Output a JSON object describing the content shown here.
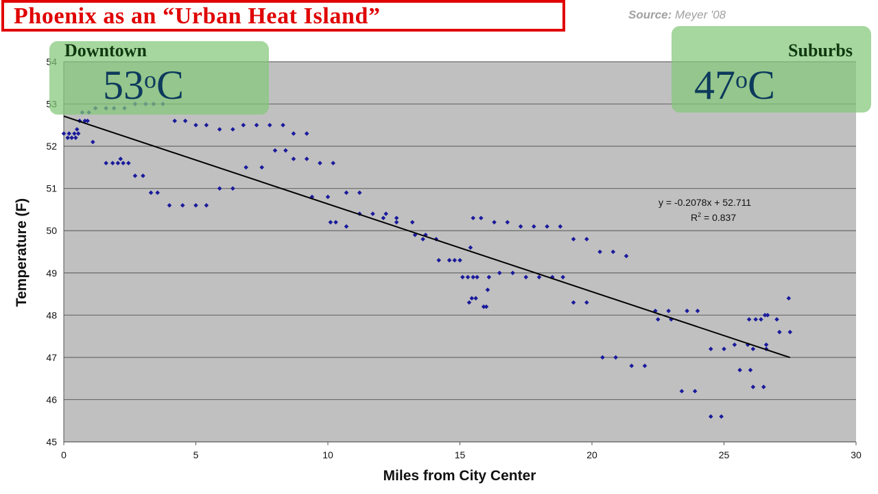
{
  "header": {
    "title": "Phoenix as an “Urban Heat Island”",
    "source_label": "Source:",
    "source_value": "Meyer '08"
  },
  "badges": {
    "downtown": {
      "label": "Downtown",
      "value": "53",
      "degree": "o",
      "unit": "C"
    },
    "suburbs": {
      "label": "Suburbs",
      "value": "47",
      "degree": "o",
      "unit": "C"
    }
  },
  "colors": {
    "title_red": "#e00000",
    "plot_bg": "#c0c0c0",
    "point_color": "#1a1a9c",
    "trend_color": "#000000",
    "badge_green": "#82c878"
  },
  "chart_data": {
    "type": "scatter",
    "title": "",
    "xlabel": "Miles from City Center",
    "ylabel": "Temperature (F)",
    "xlim": [
      0,
      30
    ],
    "ylim": [
      45,
      54
    ],
    "xticks": [
      0,
      5,
      10,
      15,
      20,
      25,
      30
    ],
    "yticks": [
      45,
      46,
      47,
      48,
      49,
      50,
      51,
      52,
      53,
      54
    ],
    "grid": "horizontal",
    "trendline": {
      "slope": -0.2078,
      "intercept": 52.711,
      "x_range": [
        0,
        27.5
      ],
      "equation": "y = -0.2078x + 52.711",
      "r2_prefix": "R",
      "r2_sup": "2",
      "r2_value": " = 0.837"
    },
    "points": [
      [
        0.0,
        52.3
      ],
      [
        0.2,
        52.3
      ],
      [
        0.15,
        52.2
      ],
      [
        0.3,
        52.2
      ],
      [
        0.4,
        52.3
      ],
      [
        0.5,
        52.4
      ],
      [
        0.45,
        52.2
      ],
      [
        0.55,
        52.3
      ],
      [
        0.6,
        52.6
      ],
      [
        0.8,
        52.6
      ],
      [
        0.7,
        52.8
      ],
      [
        0.9,
        52.6
      ],
      [
        0.95,
        52.8
      ],
      [
        1.1,
        52.1
      ],
      [
        1.2,
        52.9
      ],
      [
        1.6,
        52.9
      ],
      [
        1.9,
        52.9
      ],
      [
        2.3,
        52.9
      ],
      [
        2.7,
        53.0
      ],
      [
        3.1,
        53.0
      ],
      [
        3.4,
        53.0
      ],
      [
        3.75,
        53.0
      ],
      [
        1.6,
        51.6
      ],
      [
        1.85,
        51.6
      ],
      [
        2.05,
        51.6
      ],
      [
        2.15,
        51.7
      ],
      [
        2.25,
        51.6
      ],
      [
        2.45,
        51.6
      ],
      [
        2.7,
        51.3
      ],
      [
        3.0,
        51.3
      ],
      [
        3.3,
        50.9
      ],
      [
        3.55,
        50.9
      ],
      [
        4.0,
        50.6
      ],
      [
        4.5,
        50.6
      ],
      [
        5.0,
        50.6
      ],
      [
        5.4,
        50.6
      ],
      [
        5.9,
        51.0
      ],
      [
        6.4,
        51.0
      ],
      [
        4.2,
        52.6
      ],
      [
        4.6,
        52.6
      ],
      [
        5.0,
        52.5
      ],
      [
        5.4,
        52.5
      ],
      [
        5.9,
        52.4
      ],
      [
        6.4,
        52.4
      ],
      [
        6.8,
        52.5
      ],
      [
        7.3,
        52.5
      ],
      [
        7.8,
        52.5
      ],
      [
        8.3,
        52.5
      ],
      [
        8.7,
        52.3
      ],
      [
        9.2,
        52.3
      ],
      [
        6.9,
        51.5
      ],
      [
        7.5,
        51.5
      ],
      [
        8.0,
        51.9
      ],
      [
        8.4,
        51.9
      ],
      [
        8.7,
        51.7
      ],
      [
        9.2,
        51.7
      ],
      [
        9.7,
        51.6
      ],
      [
        10.2,
        51.6
      ],
      [
        9.4,
        50.8
      ],
      [
        10.0,
        50.8
      ],
      [
        10.1,
        50.2
      ],
      [
        10.3,
        50.2
      ],
      [
        10.7,
        50.1
      ],
      [
        10.7,
        50.9
      ],
      [
        11.2,
        50.9
      ],
      [
        11.2,
        50.4
      ],
      [
        11.7,
        50.4
      ],
      [
        12.1,
        50.3
      ],
      [
        12.2,
        50.4
      ],
      [
        12.6,
        50.2
      ],
      [
        12.6,
        50.3
      ],
      [
        13.2,
        50.2
      ],
      [
        13.3,
        49.9
      ],
      [
        13.6,
        49.8
      ],
      [
        13.7,
        49.9
      ],
      [
        14.1,
        49.8
      ],
      [
        14.2,
        49.3
      ],
      [
        14.6,
        49.3
      ],
      [
        14.8,
        49.3
      ],
      [
        15.0,
        49.3
      ],
      [
        15.1,
        48.9
      ],
      [
        15.3,
        48.9
      ],
      [
        15.35,
        48.3
      ],
      [
        15.45,
        48.4
      ],
      [
        15.5,
        48.9
      ],
      [
        15.6,
        48.4
      ],
      [
        15.65,
        48.9
      ],
      [
        15.4,
        49.6
      ],
      [
        15.5,
        50.3
      ],
      [
        15.8,
        50.3
      ],
      [
        15.9,
        48.2
      ],
      [
        16.0,
        48.2
      ],
      [
        16.05,
        48.6
      ],
      [
        16.1,
        48.9
      ],
      [
        16.3,
        50.2
      ],
      [
        16.5,
        49.0
      ],
      [
        16.8,
        50.2
      ],
      [
        17.0,
        49.0
      ],
      [
        17.3,
        50.1
      ],
      [
        17.5,
        48.9
      ],
      [
        17.8,
        50.1
      ],
      [
        18.0,
        48.9
      ],
      [
        18.3,
        50.1
      ],
      [
        18.5,
        48.9
      ],
      [
        18.8,
        50.1
      ],
      [
        18.9,
        48.9
      ],
      [
        19.3,
        49.8
      ],
      [
        19.3,
        48.3
      ],
      [
        19.8,
        49.8
      ],
      [
        19.8,
        48.3
      ],
      [
        20.3,
        49.5
      ],
      [
        20.4,
        47.0
      ],
      [
        20.8,
        49.5
      ],
      [
        20.9,
        47.0
      ],
      [
        21.3,
        49.4
      ],
      [
        21.5,
        46.8
      ],
      [
        22.0,
        46.8
      ],
      [
        22.4,
        48.1
      ],
      [
        22.5,
        47.9
      ],
      [
        22.9,
        48.1
      ],
      [
        23.0,
        47.9
      ],
      [
        23.4,
        46.2
      ],
      [
        23.6,
        48.1
      ],
      [
        23.9,
        46.2
      ],
      [
        24.0,
        48.1
      ],
      [
        24.5,
        45.6
      ],
      [
        24.5,
        47.2
      ],
      [
        24.9,
        45.6
      ],
      [
        25.0,
        47.2
      ],
      [
        25.4,
        47.3
      ],
      [
        25.6,
        46.7
      ],
      [
        25.9,
        47.3
      ],
      [
        25.95,
        47.9
      ],
      [
        26.0,
        46.7
      ],
      [
        26.1,
        46.3
      ],
      [
        26.1,
        47.2
      ],
      [
        26.2,
        47.9
      ],
      [
        26.4,
        47.9
      ],
      [
        26.5,
        46.3
      ],
      [
        26.55,
        48.0
      ],
      [
        26.6,
        47.3
      ],
      [
        26.6,
        47.2
      ],
      [
        26.65,
        48.0
      ],
      [
        27.0,
        47.9
      ],
      [
        27.1,
        47.6
      ],
      [
        27.5,
        47.6
      ],
      [
        27.45,
        48.4
      ]
    ]
  }
}
